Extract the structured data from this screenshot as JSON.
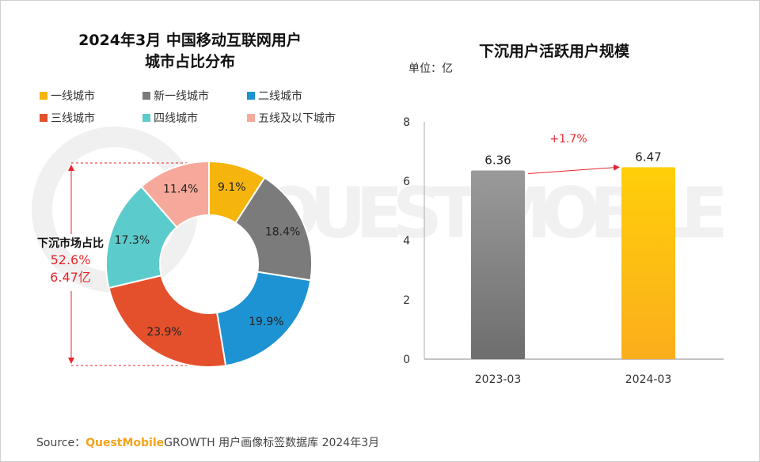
{
  "watermark": {
    "text": "QUEST MOBILE"
  },
  "source": {
    "prefix": "Source：",
    "brand": "QuestMobile",
    "suffix": "GROWTH 用户画像标签数据库 2024年3月"
  },
  "left_chart": {
    "title_line1": "2024年3月 中国移动互联网用户",
    "title_line2": "城市占比分布",
    "sinking": {
      "title": "下沉市场占比",
      "percent": "52.6%",
      "amount": "6.47亿"
    }
  },
  "right_chart": {
    "title": "下沉用户活跃用户规模",
    "unit": "单位：亿",
    "growth_label": "+1.7%"
  },
  "chart_data": [
    {
      "type": "pie",
      "donut": true,
      "title": "2024年3月 中国移动互联网用户 城市占比分布",
      "categories": [
        "一线城市",
        "新一线城市",
        "二线城市",
        "三线城市",
        "四线城市",
        "五线及以下城市"
      ],
      "values": [
        9.1,
        18.4,
        19.9,
        23.9,
        17.3,
        11.4
      ],
      "labels": [
        "9.1%",
        "18.4%",
        "19.9%",
        "23.9%",
        "17.3%",
        "11.4%"
      ],
      "colors": [
        "#f6b50d",
        "#7b7b7b",
        "#1d93d3",
        "#e5502c",
        "#5ccbcb",
        "#f6a99a"
      ],
      "legend": "top"
    },
    {
      "type": "bar",
      "title": "下沉用户活跃用户规模",
      "categories": [
        "2023-03",
        "2024-03"
      ],
      "values": [
        6.36,
        6.47
      ],
      "labels": [
        "6.36",
        "6.47"
      ],
      "yticks": [
        "0",
        "2",
        "4",
        "6",
        "8"
      ],
      "ylim": [
        0,
        8
      ],
      "ylabel": "单位：亿",
      "colors": [
        "#808080",
        "#fbbd0b"
      ],
      "annotation": "+1.7%"
    }
  ]
}
